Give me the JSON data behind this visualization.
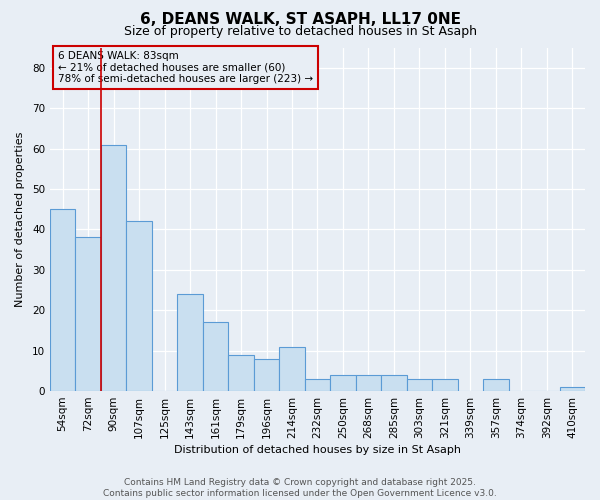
{
  "title": "6, DEANS WALK, ST ASAPH, LL17 0NE",
  "subtitle": "Size of property relative to detached houses in St Asaph",
  "xlabel": "Distribution of detached houses by size in St Asaph",
  "ylabel": "Number of detached properties",
  "bar_color": "#c9dff0",
  "bar_edge_color": "#5b9bd5",
  "categories": [
    "54sqm",
    "72sqm",
    "90sqm",
    "107sqm",
    "125sqm",
    "143sqm",
    "161sqm",
    "179sqm",
    "196sqm",
    "214sqm",
    "232sqm",
    "250sqm",
    "268sqm",
    "285sqm",
    "303sqm",
    "321sqm",
    "339sqm",
    "357sqm",
    "374sqm",
    "392sqm",
    "410sqm"
  ],
  "values": [
    45,
    38,
    61,
    42,
    0,
    24,
    17,
    9,
    8,
    11,
    3,
    4,
    4,
    4,
    3,
    3,
    0,
    3,
    0,
    0,
    1
  ],
  "ylim": [
    0,
    85
  ],
  "yticks": [
    0,
    10,
    20,
    30,
    40,
    50,
    60,
    70,
    80
  ],
  "vline_pos": 1.5,
  "ann_line1": "6 DEANS WALK: 83sqm",
  "ann_line2": "← 21% of detached houses are smaller (60)",
  "ann_line3": "78% of semi-detached houses are larger (223) →",
  "ann_box_edgecolor": "#cc0000",
  "vline_color": "#cc0000",
  "footer1": "Contains HM Land Registry data © Crown copyright and database right 2025.",
  "footer2": "Contains public sector information licensed under the Open Government Licence v3.0.",
  "bg_color": "#e8eef5",
  "grid_color": "#ffffff",
  "title_fontsize": 11,
  "subtitle_fontsize": 9,
  "axis_label_fontsize": 8,
  "tick_fontsize": 7.5,
  "footer_fontsize": 6.5,
  "ann_fontsize": 7.5
}
